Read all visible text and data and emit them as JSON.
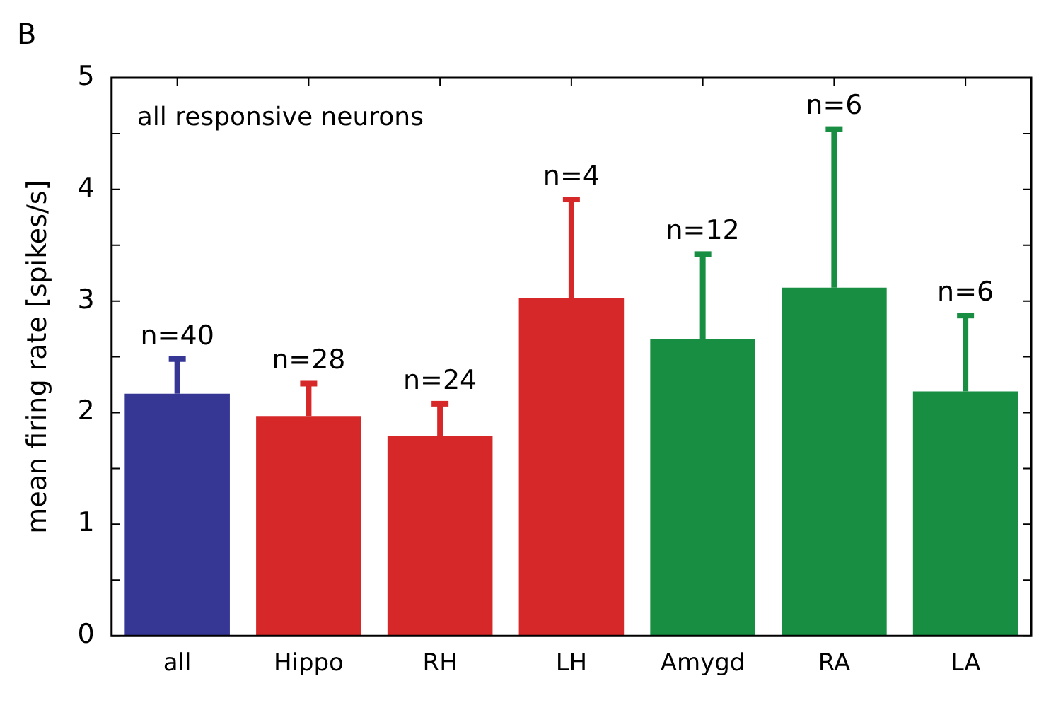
{
  "chart_data": {
    "type": "bar",
    "ylabel": "mean firing rate [spikes/s]",
    "categories": [
      "all",
      "Hippo",
      "RH",
      "LH",
      "Amygd",
      "RA",
      "LA"
    ],
    "values": [
      2.17,
      1.97,
      1.79,
      3.03,
      2.66,
      3.12,
      2.19
    ],
    "colors": [
      "#363795",
      "#d62828",
      "#d62828",
      "#d62828",
      "#178e41",
      "#178e41",
      "#178e41"
    ],
    "errors": [
      [
        2.17,
        2.48
      ],
      [
        1.97,
        2.26
      ],
      [
        1.79,
        2.08
      ],
      [
        3.03,
        3.91
      ],
      [
        2.66,
        3.42
      ],
      [
        3.12,
        4.54
      ],
      [
        2.19,
        2.87
      ]
    ],
    "ylim": [
      0,
      5
    ],
    "yticks": [
      0,
      {
        "value": 0.5,
        "label": null
      },
      1,
      {
        "value": 1.5,
        "label": null
      },
      2,
      {
        "value": 2.5,
        "label": null
      },
      3,
      {
        "value": 3.5,
        "label": null
      },
      4,
      {
        "value": 4.5,
        "label": null
      },
      5
    ],
    "annotations": [
      "B",
      "all responsive neurons",
      {
        "text": "n=40",
        "x": "all",
        "y": 2.48
      },
      {
        "text": "n=28",
        "x": "Hippo",
        "y": 2.26
      },
      {
        "text": "n=24",
        "x": "RH",
        "y": 2.08
      },
      {
        "text": "n=4",
        "x": "LH",
        "y": 3.91
      },
      {
        "text": "n=12",
        "x": "Amygd",
        "y": 3.42
      },
      {
        "text": "n=6",
        "x": "RA",
        "y": 4.54
      },
      {
        "text": "n=6",
        "x": "LA",
        "y": 2.87
      }
    ],
    "grid": false,
    "legend": false
  }
}
